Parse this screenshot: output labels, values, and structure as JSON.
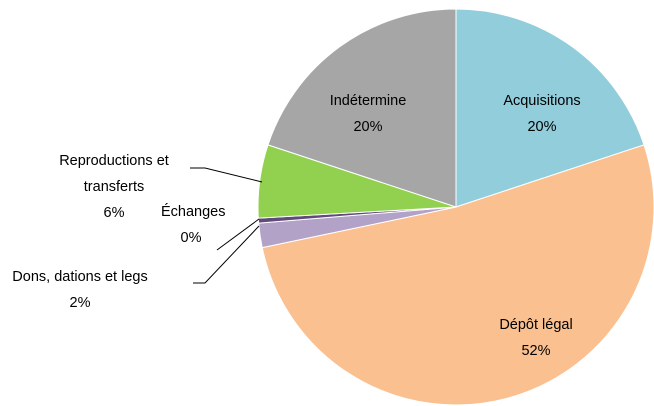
{
  "chart_data": {
    "type": "pie",
    "categories": [
      "Acquisitions",
      "Dépôt légal",
      "Dons, dations et legs",
      "Échanges",
      "Reproductions et transferts",
      "Indétermine"
    ],
    "values": [
      20,
      52,
      2,
      0.4,
      6,
      20
    ],
    "value_labels": [
      "20%",
      "52%",
      "2%",
      "0%",
      "6%",
      "20%"
    ],
    "colors": [
      "#92cddc",
      "#fac090",
      "#b3a2c7",
      "#604a7b",
      "#92d050",
      "#a6a6a6"
    ]
  }
}
